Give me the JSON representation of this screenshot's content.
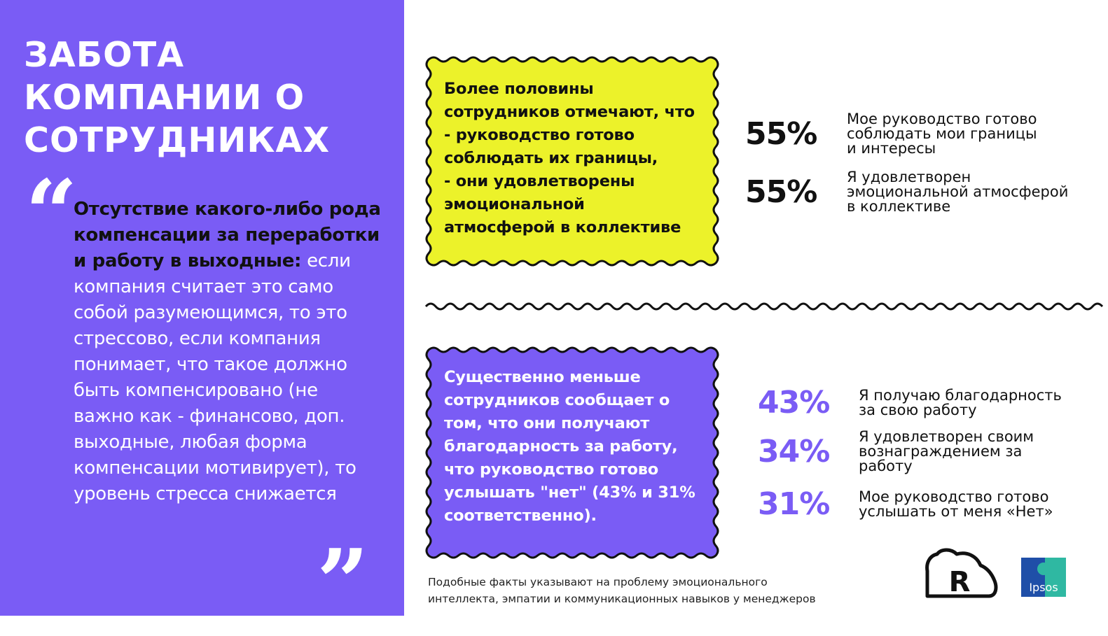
{
  "title_lines": [
    "ЗАБОТА",
    "КОМПАНИИ О",
    "СОТРУДНИКАХ"
  ],
  "quote": {
    "open_mark": "“",
    "close_mark": "”",
    "bold_part": "Отсутствие какого-либо рода компенсации за переработки и работу в выходные",
    "colon": ":",
    "regular_part": " если компания считает это само собой разумеющимся, то это стрессово, если компания понимает, что такое должно быть компенсировано (не важно как - финансово, доп. выходные, любая форма компенсации мотивирует), то уровень стресса снижается"
  },
  "box_top": {
    "lines": [
      "Более половины",
      "сотрудников отмечают, что",
      "- руководство готово",
      "соблюдать их границы,",
      "- они удовлетворены",
      "эмоциональной",
      "атмосферой в коллективе"
    ]
  },
  "stats_top": [
    {
      "value": "55%",
      "label_lines": [
        "Мое руководство готово",
        "соблюдать мои границы",
        "и интересы"
      ]
    },
    {
      "value": "55%",
      "label_lines": [
        "Я удовлетворен",
        "эмоциональной атмосферой",
        "в коллективе"
      ]
    }
  ],
  "box_bottom": {
    "lines": [
      "Существенно меньше",
      "сотрудников сообщает о",
      "том, что они получают",
      "благодарность за работу,",
      "что руководство готово",
      "услышать \"нет\" (43% и 31%",
      "соответственно)."
    ]
  },
  "stats_bottom": [
    {
      "value": "43%",
      "label_lines": [
        "Я получаю благодарность",
        "за свою работу"
      ]
    },
    {
      "value": "34%",
      "label_lines": [
        "Я удовлетворен своим",
        "вознаграждением за",
        "работу"
      ]
    },
    {
      "value": "31%",
      "label_lines": [
        "Мое руководство готово",
        "услышать от меня «Нет»"
      ]
    }
  ],
  "footnote_lines": [
    "Подобные факты указывают на проблему эмоционального",
    "интеллекта, эмпатии и коммуникационных навыков у менеджеров"
  ],
  "logos": {
    "r_logo_letter": "R",
    "ipsos_text": "Ipsos"
  },
  "colors": {
    "purple": "#7a5cf5",
    "yellow": "#ecf22a",
    "ipsos_teal": "#2fb8a2",
    "ipsos_blue": "#1f4fa8",
    "dark": "#111111"
  }
}
